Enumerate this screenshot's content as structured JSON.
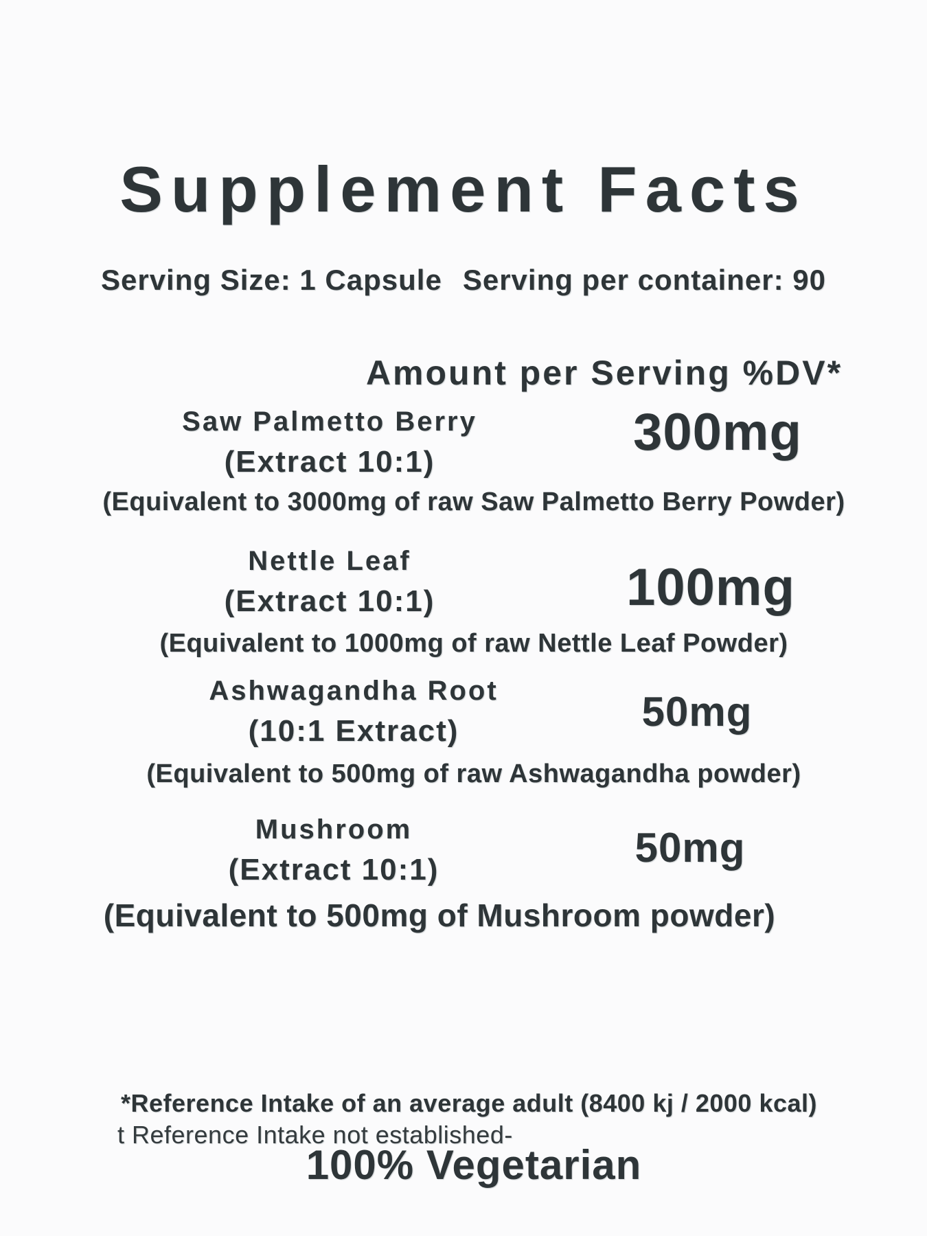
{
  "label": {
    "title": "Supplement Facts",
    "serving": {
      "size": "Serving Size: 1 Capsule",
      "per_container": "Serving per container: 90"
    },
    "column_header": "Amount per Serving %DV*",
    "ingredients": [
      {
        "name": "Saw Palmetto Berry",
        "extract": "(Extract 10:1)",
        "amount": "300mg",
        "equivalent": "(Equivalent to 3000mg of raw Saw Palmetto Berry Powder)"
      },
      {
        "name": "Nettle Leaf",
        "extract": "(Extract 10:1)",
        "amount": "100mg",
        "equivalent": "(Equivalent to 1000mg of raw Nettle Leaf Powder)"
      },
      {
        "name": "Ashwagandha Root",
        "extract": "(10:1 Extract)",
        "amount": "50mg",
        "equivalent": "(Equivalent to 500mg of raw Ashwagandha powder)"
      },
      {
        "name": "Mushroom",
        "extract": "(Extract 10:1)",
        "amount": "50mg",
        "equivalent": "(Equivalent to 500mg of Mushroom powder)"
      }
    ],
    "footnotes": {
      "reference_intake": "*Reference Intake of an average adult (8400 kj / 2000 kcal)",
      "not_established": "t Reference Intake not established-",
      "vegetarian": "100% Vegetarian"
    },
    "colors": {
      "text": "#2e3538",
      "background": "#fbfbfc"
    }
  }
}
